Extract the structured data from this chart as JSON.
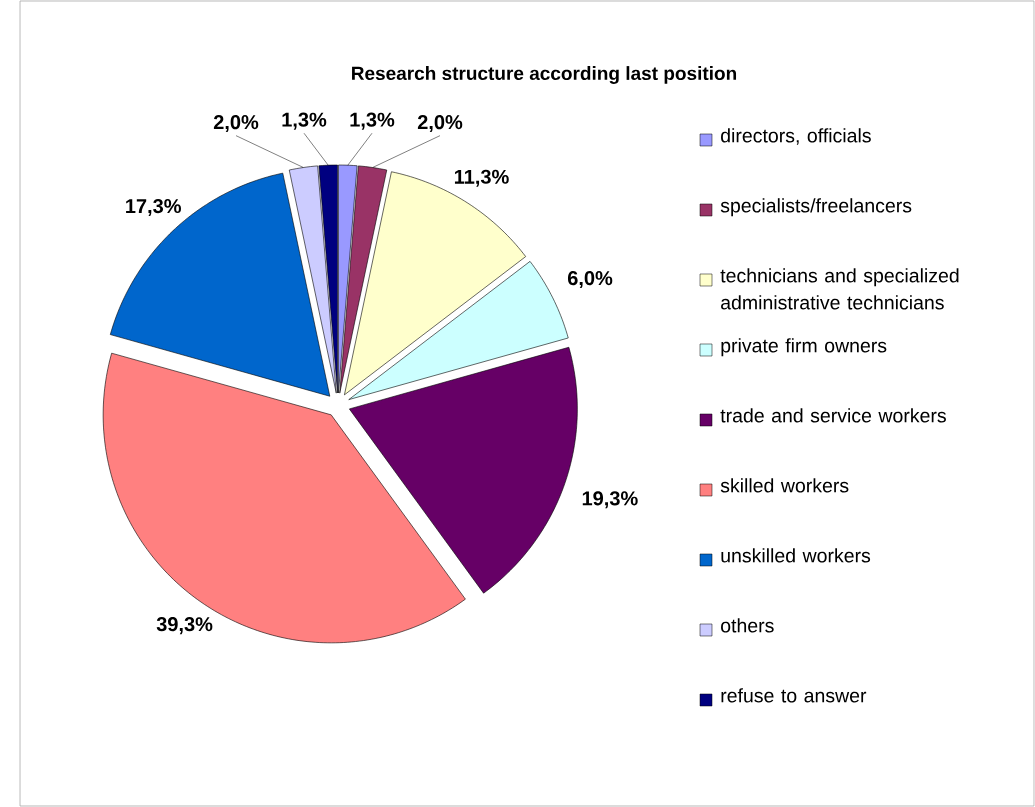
{
  "chart_data": {
    "type": "pie",
    "title": "Research structure according last position",
    "categories": [
      "directors, officials",
      "specialists/freelancers",
      "technicians and specialized administrative technicians",
      "private firm owners",
      "trade and service workers",
      "skilled workers",
      "unskilled workers",
      "others",
      "refuse to answer"
    ],
    "values": [
      1.3,
      2.0,
      11.3,
      6.0,
      19.3,
      39.3,
      17.3,
      2.0,
      1.3
    ],
    "value_labels": [
      "1,3%",
      "2,0%",
      "11,3%",
      "6,0%",
      "19,3%",
      "39,3%",
      "17,3%",
      "2,0%",
      "1,3%"
    ],
    "colors": [
      "#9999ff",
      "#993366",
      "#ffffcc",
      "#ccffff",
      "#660066",
      "#ff8080",
      "#0066cc",
      "#ccccff",
      "#000080"
    ],
    "legend": "right"
  }
}
